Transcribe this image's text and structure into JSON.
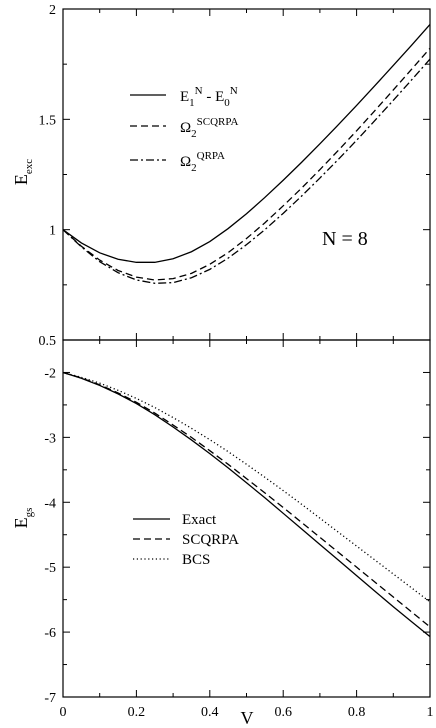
{
  "chart_data": [
    {
      "type": "line",
      "panel": "top",
      "xlim": [
        0,
        1
      ],
      "ylim": [
        0.5,
        2
      ],
      "yticks": [
        "0.5",
        "1",
        "1.5",
        "2"
      ],
      "ylabel_main": "E",
      "ylabel_sub": "exc",
      "annotation": "N = 8",
      "legend": [
        {
          "parts": [
            [
              "E",
              ""
            ],
            [
              "1",
              "sub"
            ],
            [
              "N",
              "sup"
            ],
            [
              " - E",
              ""
            ],
            [
              "0",
              "sub"
            ],
            [
              "N",
              "sup"
            ]
          ],
          "style": "solid"
        },
        {
          "parts": [
            [
              "Ω",
              ""
            ],
            [
              "2",
              "sub"
            ],
            [
              "SCQRPA",
              "sup"
            ]
          ],
          "style": "dashed"
        },
        {
          "parts": [
            [
              "Ω",
              ""
            ],
            [
              "2",
              "sub"
            ],
            [
              "QRPA",
              "sup"
            ]
          ],
          "style": "dashdot"
        }
      ],
      "x": [
        0,
        0.05,
        0.1,
        0.15,
        0.2,
        0.25,
        0.3,
        0.35,
        0.4,
        0.45,
        0.5,
        0.55,
        0.6,
        0.65,
        0.7,
        0.75,
        0.8,
        0.85,
        0.9,
        0.95,
        1.0
      ],
      "series": [
        {
          "style": "solid",
          "values": [
            1.0,
            0.94,
            0.895,
            0.866,
            0.852,
            0.852,
            0.868,
            0.9,
            0.946,
            1.005,
            1.072,
            1.146,
            1.224,
            1.305,
            1.389,
            1.475,
            1.563,
            1.653,
            1.744,
            1.836,
            1.93
          ]
        },
        {
          "style": "dashed",
          "values": [
            1.0,
            0.925,
            0.862,
            0.815,
            0.785,
            0.772,
            0.778,
            0.802,
            0.843,
            0.896,
            0.96,
            1.031,
            1.108,
            1.188,
            1.272,
            1.359,
            1.448,
            1.54,
            1.633,
            1.727,
            1.822
          ]
        },
        {
          "style": "dashdot",
          "values": [
            1.0,
            0.922,
            0.855,
            0.805,
            0.772,
            0.757,
            0.76,
            0.782,
            0.82,
            0.871,
            0.932,
            1.0,
            1.074,
            1.152,
            1.234,
            1.318,
            1.405,
            1.495,
            1.586,
            1.679,
            1.773
          ]
        }
      ]
    },
    {
      "type": "line",
      "panel": "bottom",
      "xlim": [
        0,
        1
      ],
      "ylim": [
        -7,
        -1.5
      ],
      "xticks": [
        "0",
        "0.2",
        "0.4",
        "0.6",
        "0.8",
        "1"
      ],
      "yticks": [
        "-7",
        "-6",
        "-5",
        "-4",
        "-3",
        "-2"
      ],
      "xlabel": "V",
      "ylabel_main": "E",
      "ylabel_sub": "gs",
      "legend": [
        {
          "label": "Exact",
          "style": "solid"
        },
        {
          "label": "SCQRPA",
          "style": "dashed"
        },
        {
          "label": "BCS",
          "style": "dotted"
        }
      ],
      "x": [
        0,
        0.05,
        0.1,
        0.15,
        0.2,
        0.25,
        0.3,
        0.35,
        0.4,
        0.45,
        0.5,
        0.55,
        0.6,
        0.65,
        0.7,
        0.75,
        0.8,
        0.85,
        0.9,
        0.95,
        1.0
      ],
      "series": [
        {
          "label": "Exact",
          "style": "solid",
          "values": [
            -2.0,
            -2.09,
            -2.2,
            -2.33,
            -2.48,
            -2.65,
            -2.84,
            -3.04,
            -3.25,
            -3.47,
            -3.7,
            -3.93,
            -4.17,
            -4.41,
            -4.65,
            -4.89,
            -5.13,
            -5.37,
            -5.61,
            -5.84,
            -6.07
          ]
        },
        {
          "label": "SCQRPA",
          "style": "dashed",
          "values": [
            -2.0,
            -2.085,
            -2.19,
            -2.315,
            -2.46,
            -2.625,
            -2.81,
            -3.0,
            -3.205,
            -3.415,
            -3.635,
            -3.855,
            -4.08,
            -4.31,
            -4.54,
            -4.77,
            -5.0,
            -5.23,
            -5.46,
            -5.69,
            -5.92
          ]
        },
        {
          "label": "BCS",
          "style": "dotted",
          "values": [
            -2.0,
            -2.075,
            -2.165,
            -2.275,
            -2.4,
            -2.54,
            -2.695,
            -2.86,
            -3.035,
            -3.22,
            -3.415,
            -3.615,
            -3.82,
            -4.03,
            -4.245,
            -4.46,
            -4.675,
            -4.89,
            -5.105,
            -5.32,
            -5.535
          ]
        }
      ]
    }
  ]
}
